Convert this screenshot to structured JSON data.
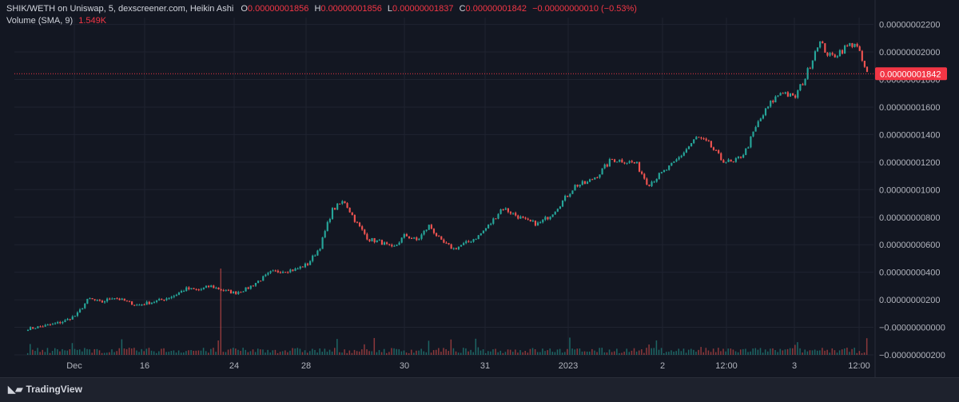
{
  "header": {
    "pair_line": "SHIK/WETH on Uniswap, 5, dexscreener.com, Heikin Ashi",
    "o_label": "O",
    "o_value": "0.00000001856",
    "h_label": "H",
    "h_value": "0.00000001856",
    "l_label": "L",
    "l_value": "0.00000001837",
    "c_label": "C",
    "c_value": "0.00000001842",
    "change": "−0.00000000010 (−0.53%)",
    "volume_label": "Volume (SMA, 9)",
    "volume_value": "1.549K"
  },
  "footer": {
    "brand": "TradingView",
    "logo_icon": "tradingview-logo-icon"
  },
  "colors": {
    "up": "#26a69a",
    "down": "#ef5350",
    "bg": "#131722",
    "grid": "#1f2330",
    "text": "#b2b5be",
    "price_tag": "#f23645"
  },
  "chart_data": {
    "type": "line",
    "style": "heikin-ashi candles",
    "x_ticks": [
      "Dec",
      "16",
      "24",
      "28",
      "30",
      "31",
      "2023",
      "2",
      "12:00",
      "3",
      "12:00"
    ],
    "y_ticks": [
      "0.00000002200",
      "0.00000002000",
      "0.00000001800",
      "0.00000001600",
      "0.00000001400",
      "0.00000001200",
      "0.00000001000",
      "0.00000000800",
      "0.00000000600",
      "0.00000000400",
      "0.00000000200",
      "−0.00000000000",
      "−0.00000000200"
    ],
    "ylim": [
      -2e-09,
      2.25e-08
    ],
    "last_price": 1.842e-08,
    "last_price_label": "0.00000001842",
    "series": [
      {
        "values": [
          -1e-10,
          5e-11,
          2e-10,
          4.5e-10,
          9e-10,
          2.1e-09,
          1.8e-09,
          2.2e-09,
          1.9e-09,
          1.6e-09,
          1.8e-09,
          2e-09,
          2.3e-09,
          2.8e-09,
          2.7e-09,
          3e-09,
          2.7e-09,
          2.5e-09,
          2.8e-09,
          3.4e-09,
          4e-09,
          4.1e-09,
          4.2e-09,
          4.6e-09,
          5.8e-09,
          8.5e-09,
          9.2e-09,
          7.6e-09,
          6.4e-09,
          6.2e-09,
          5.7e-09,
          6.7e-09,
          6.3e-09,
          7.4e-09,
          6.2e-09,
          5.7e-09,
          6.1e-09,
          6.6e-09,
          7.5e-09,
          8.7e-09,
          8.2e-09,
          7.7e-09,
          7.5e-09,
          8.2e-09,
          9.2e-09,
          1.03e-08,
          1.05e-08,
          1.12e-08,
          1.22e-08,
          1.21e-08,
          1.19e-08,
          1.04e-08,
          1.11e-08,
          1.18e-08,
          1.28e-08,
          1.38e-08,
          1.33e-08,
          1.22e-08,
          1.19e-08,
          1.28e-08,
          1.48e-08,
          1.62e-08,
          1.72e-08,
          1.66e-08,
          1.83e-08,
          2.08e-08,
          1.96e-08,
          2.02e-08,
          2.07e-08,
          1.84e-08
        ]
      }
    ]
  }
}
